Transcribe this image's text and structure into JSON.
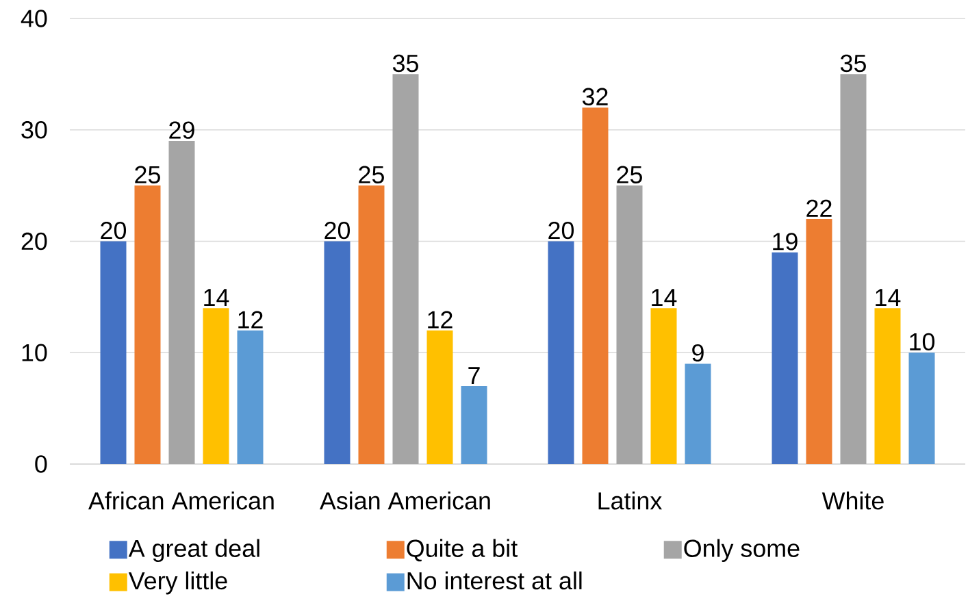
{
  "chart_data": {
    "type": "bar",
    "categories": [
      "African American",
      "Asian American",
      "Latinx",
      "White"
    ],
    "series": [
      {
        "name": "A great deal",
        "color": "#4472c4",
        "values": [
          20,
          20,
          20,
          19
        ]
      },
      {
        "name": "Quite a bit",
        "color": "#ed7d31",
        "values": [
          25,
          25,
          32,
          22
        ]
      },
      {
        "name": "Only some",
        "color": "#a5a5a5",
        "values": [
          29,
          35,
          25,
          35
        ]
      },
      {
        "name": "Very little",
        "color": "#ffc000",
        "values": [
          14,
          12,
          14,
          14
        ]
      },
      {
        "name": "No interest at all",
        "color": "#5b9bd5",
        "values": [
          12,
          7,
          9,
          10
        ]
      }
    ],
    "ylim": [
      0,
      40
    ],
    "yticks": [
      0,
      10,
      20,
      30,
      40
    ],
    "grid": "y",
    "legend": "bottom",
    "data_labels": true
  }
}
